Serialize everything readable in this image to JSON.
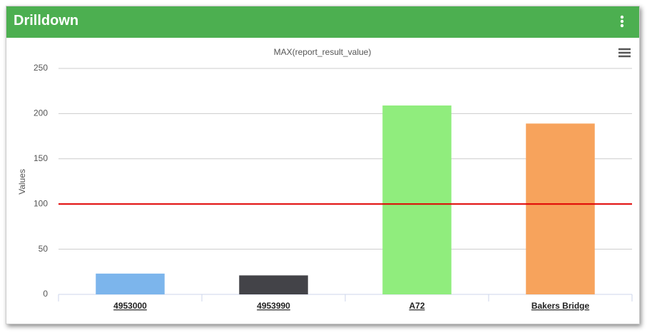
{
  "header": {
    "title": "Drilldown"
  },
  "chart_data": {
    "type": "bar",
    "title": "MAX(report_result_value)",
    "y_label": "Values",
    "categories": [
      "4953000",
      "4953990",
      "A72",
      "Bakers Bridge"
    ],
    "values": [
      23,
      21,
      209,
      189
    ],
    "colors": [
      "#7cb5ec",
      "#434348",
      "#90ed7d",
      "#f7a35c"
    ],
    "ylim": [
      0,
      250
    ],
    "yticks": [
      0,
      50,
      100,
      150,
      200,
      250
    ],
    "grid": true,
    "threshold": 100,
    "threshold_color": "#e00000"
  }
}
